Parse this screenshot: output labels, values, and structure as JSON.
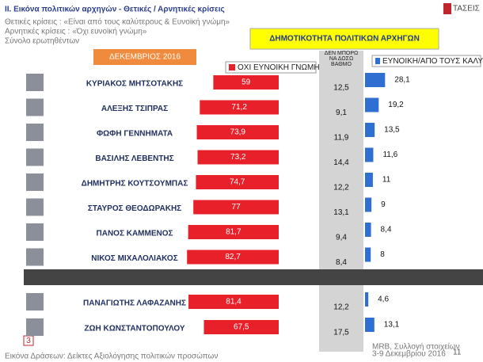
{
  "chart_data": {
    "type": "diverging-bar",
    "title": "ΙΙ. Εικόνα πολιτικών αρχηγών  - Θετικές / Αρνητικές κρίσεις",
    "subtitle_lines": [
      "Θετικές κρίσεις : «Είναι από τους καλύτερους &  Ευνοϊκή γνώμη»",
      "Αρνητικές κρίσεις : «Όχι ευνοϊκή γνώμη»",
      "Σύνολο ερωτηθέντων"
    ],
    "logo": "ΤΑΣΕΙΣ",
    "box_title": "ΔΗΜΟΤΙΚΟΤΗΤΑ ΠΟΛΙΤΙΚΩΝ ΑΡΧΗΓΩΝ",
    "period": "ΔΕΚΕΜΒΡΙΟΣ 2016",
    "categories": [
      "ΚΥΡΙΑΚΟΣ ΜΗΤΣΟΤΑΚΗΣ",
      "ΑΛΕΞΗΣ ΤΣΙΠΡΑΣ",
      "ΦΩΦΗ ΓΕΝΝΗΜΑΤΑ",
      "ΒΑΣΙΛΗΣ ΛΕΒΕΝΤΗΣ",
      "ΔΗΜΗΤΡΗΣ ΚΟΥΤΣΟΥΜΠΑΣ",
      "ΣΤΑΥΡΟΣ ΘΕΟΔΩΡΑΚΗΣ",
      "ΠΑΝΟΣ ΚΑΜΜΕΝΟΣ",
      "ΝΙΚΟΣ ΜΙΧΑΛΟΛΙΑΚΟΣ",
      "ΠΑΝΑΓΙΩΤΗΣ ΛΑΦΑΖΑΝΗΣ",
      "ΖΩΗ ΚΩΝΣΤΑΝΤΟΠΟΥΛΟΥ"
    ],
    "series": [
      {
        "name": "ΟΧΙ ΕΥΝΟΙΚΗ ΓΝΩΜΗ",
        "color": "#e8202a",
        "values": [
          59,
          71.2,
          73.9,
          73.2,
          74.7,
          77,
          81.7,
          82.7,
          81.4,
          67.5
        ],
        "value_labels": [
          "59",
          "71,2",
          "73,9",
          "73,2",
          "74,7",
          "77",
          "81,7",
          "82,7",
          "81,4",
          "67,5"
        ]
      },
      {
        "name": "ΔΕΝ ΜΠΟΡΩ ΝΑ ΔΩΣΩ ΒΑΘΜΟ",
        "color": "#d4d4d4",
        "values": [
          12.5,
          9.1,
          11.9,
          14.4,
          12.2,
          13.1,
          9.4,
          8.4,
          12.2,
          17.5
        ],
        "value_labels": [
          "12,5",
          "9,1",
          "11,9",
          "14,4",
          "12,2",
          "13,1",
          "9,4",
          "8,4",
          "12,2",
          "17,5"
        ]
      },
      {
        "name": "ΕΥΝΟΙΚΗ/ΑΠΟ ΤΟΥΣ ΚΑΛΥΤΕΡΟΥΣ",
        "color": "#2e6fd1",
        "values": [
          28.1,
          19.2,
          13.5,
          11.6,
          11,
          9,
          8.4,
          8,
          4.6,
          13.1
        ],
        "value_labels": [
          "28,1",
          "19,2",
          "13,5",
          "11,6",
          "11",
          "9",
          "8,4",
          "8",
          "4,6",
          "13,1"
        ]
      }
    ],
    "footer": "Εικόνα Δράσεων: Δείκτες Αξιολόγησης πολιτικών προσώπων",
    "source_lines": [
      "MRB, Συλλογή στοιχείων",
      "3-9 Δεκεμβρίου 2016"
    ],
    "page_number": "11",
    "slide_tag": "3"
  }
}
